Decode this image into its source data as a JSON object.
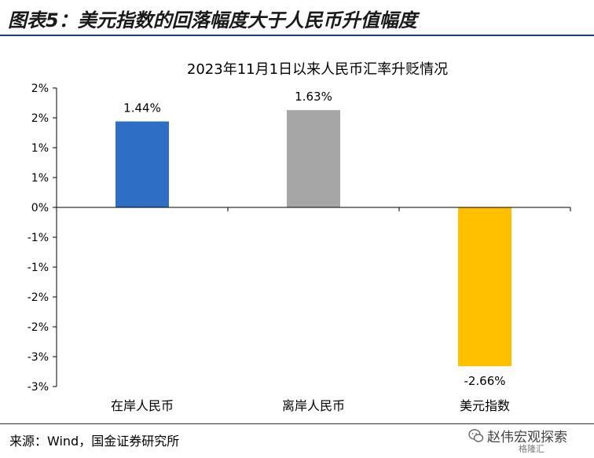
{
  "figure": {
    "title": "图表5：美元指数的回落幅度大于人民币升值幅度",
    "source": "来源：Wind，国金证券研究所",
    "watermark": "赵伟宏观探索",
    "watermark_sub": "格隆汇",
    "watermark_icon": "wechat-icon"
  },
  "chart_data": {
    "type": "bar",
    "title": "2023年11月1日以来人民币汇率升贬情况",
    "categories": [
      "在岸人民币",
      "离岸人民币",
      "美元指数"
    ],
    "values": [
      1.44,
      1.63,
      -2.66
    ],
    "data_labels": [
      "1.44%",
      "1.63%",
      "-2.66%"
    ],
    "colors": [
      "#2e6fc5",
      "#a6a6a6",
      "#ffc000"
    ],
    "ylim": [
      -3,
      2
    ],
    "yticks": [
      {
        "value": 2.0,
        "label": "2%"
      },
      {
        "value": 1.5,
        "label": "2%"
      },
      {
        "value": 1.0,
        "label": "1%"
      },
      {
        "value": 0.5,
        "label": "1%"
      },
      {
        "value": 0.0,
        "label": "0%"
      },
      {
        "value": -0.5,
        "label": "-1%"
      },
      {
        "value": -1.0,
        "label": "-1%"
      },
      {
        "value": -1.5,
        "label": "-2%"
      },
      {
        "value": -2.0,
        "label": "-2%"
      },
      {
        "value": -2.5,
        "label": "-3%"
      },
      {
        "value": -3.0,
        "label": "-3%"
      }
    ],
    "xlabel": "",
    "ylabel": "",
    "grid": false,
    "legend": "none"
  }
}
